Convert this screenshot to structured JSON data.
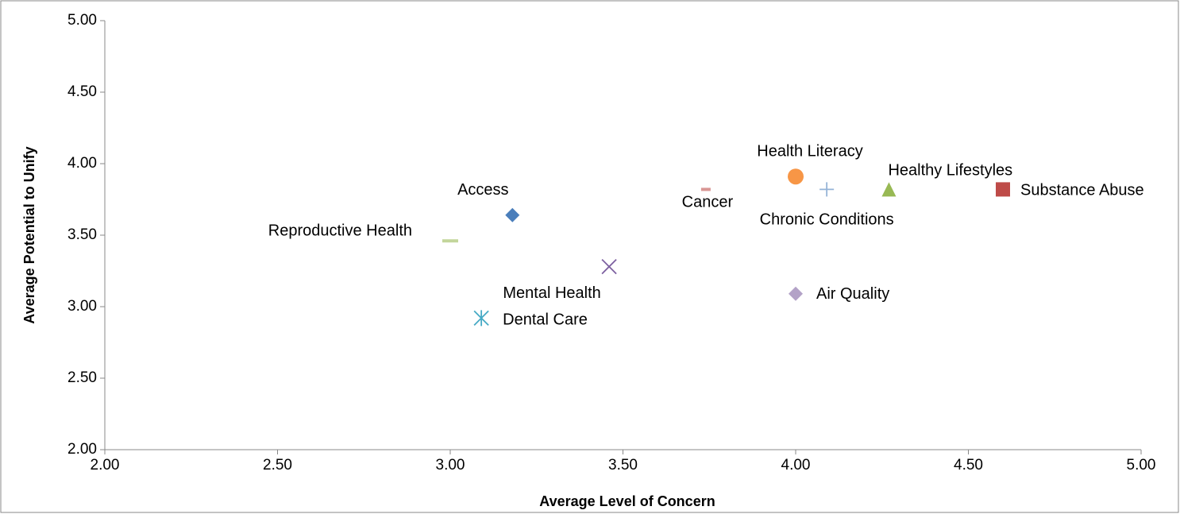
{
  "chart_data": {
    "type": "scatter",
    "x_label": "Average Level of Concern",
    "y_label": "Average  Potential to Unify",
    "xlim": [
      2,
      5
    ],
    "xticks": [
      {
        "value": 2,
        "label": "2.00"
      },
      {
        "value": 2.5,
        "label": "2.50"
      },
      {
        "value": 3,
        "label": "3.00"
      },
      {
        "value": 3.5,
        "label": "3.50"
      },
      {
        "value": 4,
        "label": "4.00"
      },
      {
        "value": 4.5,
        "label": "4.50"
      },
      {
        "value": 5,
        "label": "5.00"
      }
    ],
    "ylim": [
      2,
      5
    ],
    "yticks": [
      {
        "value": 2,
        "label": "2.00"
      },
      {
        "value": 2.5,
        "label": "2.50"
      },
      {
        "value": 3,
        "label": "3.00"
      },
      {
        "value": 3.5,
        "label": "3.50"
      },
      {
        "value": 4,
        "label": "4.00"
      },
      {
        "value": 4.5,
        "label": "4.50"
      },
      {
        "value": 5,
        "label": "5.00"
      }
    ],
    "grid": false,
    "series": [
      {
        "name": "Access",
        "color": "#4a7ebb",
        "marker": "diamond",
        "x": [
          3.18
        ],
        "values": [
          3.64
        ]
      },
      {
        "name": "Reproductive Health",
        "color": "#c3d69b",
        "marker": "dash",
        "x": [
          3.0
        ],
        "values": [
          3.46
        ]
      },
      {
        "name": "Mental Health",
        "color": "#7d60a0",
        "marker": "x",
        "x": [
          3.46
        ],
        "values": [
          3.28
        ]
      },
      {
        "name": "Dental Care",
        "color": "#46aac5",
        "marker": "star",
        "x": [
          3.09
        ],
        "values": [
          2.92
        ]
      },
      {
        "name": "Cancer",
        "color": "#d99694",
        "marker": "dash-small",
        "x": [
          3.74
        ],
        "values": [
          3.82
        ]
      },
      {
        "name": "Health Literacy",
        "color": "#f79646",
        "marker": "circle",
        "x": [
          4.0
        ],
        "values": [
          3.91
        ]
      },
      {
        "name": "Chronic Conditions",
        "color": "#95b3d7",
        "marker": "plus",
        "x": [
          4.09
        ],
        "values": [
          3.82
        ]
      },
      {
        "name": "Healthy Lifestyles",
        "color": "#98b954",
        "marker": "triangle",
        "x": [
          4.27
        ],
        "values": [
          3.82
        ]
      },
      {
        "name": "Substance Abuse",
        "color": "#be4b48",
        "marker": "square",
        "x": [
          4.6
        ],
        "values": [
          3.82
        ]
      },
      {
        "name": "Air Quality",
        "color": "#b3a2c7",
        "marker": "diamond",
        "x": [
          4.0
        ],
        "values": [
          3.09
        ]
      }
    ]
  }
}
